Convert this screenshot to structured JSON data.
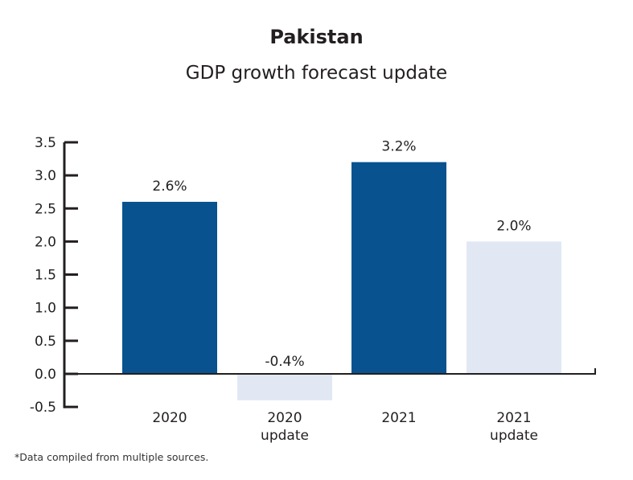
{
  "chart_data": {
    "type": "bar",
    "title": "Pakistan",
    "subtitle": "GDP growth forecast update",
    "categories": [
      [
        "2020"
      ],
      [
        "2020",
        "update"
      ],
      [
        "2021"
      ],
      [
        "2021",
        "update"
      ]
    ],
    "values": [
      2.6,
      -0.4,
      3.2,
      2.0
    ],
    "data_labels": [
      "2.6%",
      "-0.4%",
      "3.2%",
      "2.0%"
    ],
    "bar_colors": [
      "#08528f",
      "#e1e8f4",
      "#08528f",
      "#e1e8f4"
    ],
    "yticks": [
      "3.5",
      "3.0",
      "2.5",
      "2.0",
      "1.5",
      "1.0",
      "0.5",
      "0.0",
      "-0.5"
    ],
    "ylim": [
      -0.5,
      3.5
    ],
    "xlabel": "",
    "ylabel": "",
    "grid": false,
    "note": "*Data compiled from multiple sources."
  }
}
